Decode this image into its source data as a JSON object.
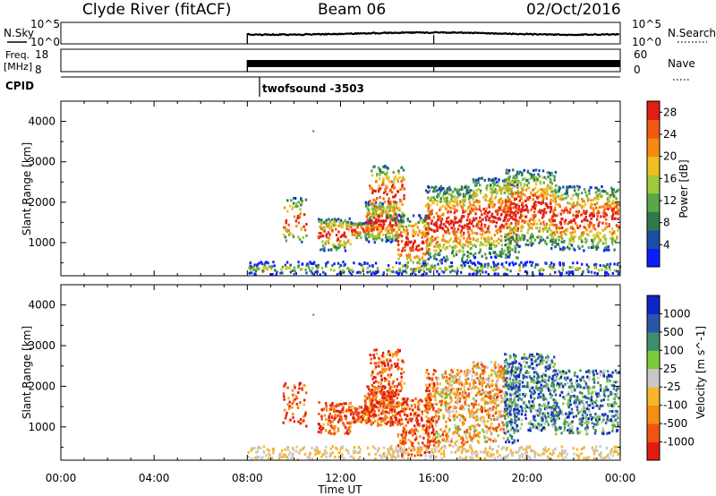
{
  "header": {
    "station": "Clyde River (fitACF)",
    "beam": "Beam 06",
    "date": "02/Oct/2016"
  },
  "nsky_panel": {
    "left_label": "N.Sky",
    "right_label": "N.Search",
    "left_ticks": [
      "10^5",
      "10^0"
    ],
    "right_ticks": [
      "10^5",
      "10^0"
    ]
  },
  "freq_panel": {
    "left_label_line1": "Freq.",
    "left_label_line2": "[MHz]",
    "left_ticks": [
      "18",
      "8"
    ],
    "right_label": "Nave",
    "right_ticks": [
      "60",
      "0"
    ]
  },
  "cpid": {
    "label": "CPID",
    "program": "twofsound -3503"
  },
  "x_axis": {
    "label": "Time UT",
    "ticks": [
      "00:00",
      "04:00",
      "08:00",
      "12:00",
      "16:00",
      "20:00",
      "00:00"
    ]
  },
  "colors": {
    "power": [
      "#0a1eff",
      "#1a4fa8",
      "#2f7a4a",
      "#5aa64a",
      "#9ec93a",
      "#f0c020",
      "#f58a12",
      "#f05a10",
      "#e01e14"
    ],
    "velocity": [
      "#e21c12",
      "#f05512",
      "#f58e12",
      "#f7b52a",
      "#c8c8c8",
      "#7ccb3a",
      "#3f8f6e",
      "#2a55a8",
      "#1024c8"
    ]
  },
  "chart_data": [
    {
      "type": "heatmap",
      "name": "power",
      "ylabel": "Slant Range [km]",
      "yticks": [
        "1000",
        "2000",
        "3000",
        "4000"
      ],
      "ylim": [
        180,
        4500
      ],
      "colorbar_label": "Power [dB]",
      "colorbar_ticks": [
        "4",
        "8",
        "12",
        "16",
        "20",
        "24",
        "28"
      ],
      "clim": [
        0,
        30
      ]
    },
    {
      "type": "heatmap",
      "name": "velocity",
      "ylabel": "Slant Range [km]",
      "yticks": [
        "1000",
        "2000",
        "3000",
        "4000"
      ],
      "ylim": [
        180,
        4500
      ],
      "colorbar_label": "Velocity [m s^-1]",
      "colorbar_ticks": [
        "1000",
        "500",
        "100",
        "25",
        "-25",
        "-100",
        "-500",
        "-1000"
      ]
    }
  ]
}
